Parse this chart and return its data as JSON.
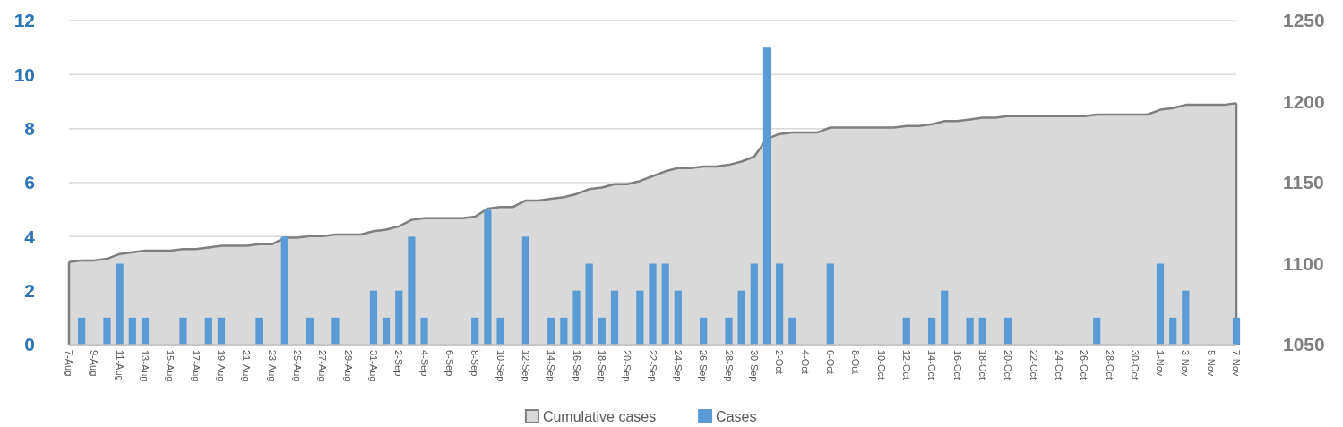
{
  "chart_data": {
    "type": "bar",
    "categories": [
      "7-Aug",
      null,
      "9-Aug",
      null,
      "11-Aug",
      null,
      "13-Aug",
      null,
      "15-Aug",
      null,
      "17-Aug",
      null,
      "19-Aug",
      null,
      "21-Aug",
      null,
      "23-Aug",
      null,
      "25-Aug",
      null,
      "27-Aug",
      null,
      "29-Aug",
      null,
      "31-Aug",
      null,
      "2-Sep",
      null,
      "4-Sep",
      null,
      "6-Sep",
      null,
      "8-Sep",
      null,
      "10-Sep",
      null,
      "12-Sep",
      null,
      "14-Sep",
      null,
      "16-Sep",
      null,
      "18-Sep",
      null,
      "20-Sep",
      null,
      "22-Sep",
      null,
      "24-Sep",
      null,
      "26-Sep",
      null,
      "28-Sep",
      null,
      "30-Sep",
      null,
      "2-Oct",
      null,
      "4-Oct",
      null,
      "6-Oct",
      null,
      "8-Oct",
      null,
      "10-Oct",
      null,
      "12-Oct",
      null,
      "14-Oct",
      null,
      "16-Oct",
      null,
      "18-Oct",
      null,
      "20-Oct",
      null,
      "22-Oct",
      null,
      "24-Oct",
      null,
      "26-Oct",
      null,
      "28-Oct",
      null,
      "30-Oct",
      null,
      "1-Nov",
      null,
      "3-Nov",
      null,
      "5-Nov",
      null,
      "7-Nov"
    ],
    "series": [
      {
        "name": "Cumulative cases",
        "type": "area",
        "axis": "y2",
        "color": "#7f7f7f",
        "values": [
          1101,
          1102,
          1102,
          1103,
          1106,
          1107,
          1108,
          1108,
          1108,
          1109,
          1109,
          1110,
          1111,
          1111,
          1111,
          1112,
          1112,
          1116,
          1116,
          1117,
          1117,
          1118,
          1118,
          1118,
          1120,
          1121,
          1123,
          1127,
          1128,
          1128,
          1128,
          1128,
          1129,
          1134,
          1135,
          1135,
          1139,
          1139,
          1140,
          1141,
          1143,
          1146,
          1147,
          1149,
          1149,
          1151,
          1154,
          1157,
          1159,
          1159,
          1160,
          1160,
          1161,
          1163,
          1166,
          1177,
          1180,
          1181,
          1181,
          1181,
          1184,
          1184,
          1184,
          1184,
          1184,
          1184,
          1185,
          1185,
          1186,
          1188,
          1188,
          1189,
          1190,
          1190,
          1191,
          1191,
          1191,
          1191,
          1191,
          1191,
          1191,
          1192,
          1192,
          1192,
          1192,
          1192,
          1195,
          1196,
          1198,
          1198,
          1198,
          1198,
          1199
        ]
      },
      {
        "name": "Cases",
        "color": "#5b9bd5",
        "values": [
          0,
          1,
          0,
          1,
          3,
          1,
          1,
          0,
          0,
          1,
          0,
          1,
          1,
          0,
          0,
          1,
          0,
          4,
          0,
          1,
          0,
          1,
          0,
          0,
          2,
          1,
          2,
          4,
          1,
          0,
          0,
          0,
          1,
          5,
          1,
          0,
          4,
          0,
          1,
          1,
          2,
          3,
          1,
          2,
          0,
          2,
          3,
          3,
          2,
          0,
          1,
          0,
          1,
          2,
          3,
          11,
          3,
          1,
          0,
          0,
          3,
          0,
          0,
          0,
          0,
          0,
          1,
          0,
          1,
          2,
          0,
          1,
          1,
          0,
          1,
          0,
          0,
          0,
          0,
          0,
          0,
          1,
          0,
          0,
          0,
          0,
          3,
          1,
          2,
          0,
          0,
          0,
          1
        ]
      }
    ],
    "ylim": [
      0,
      12
    ],
    "yticks": [
      0,
      2,
      4,
      6,
      8,
      10,
      12
    ],
    "y2lim": [
      1050,
      1250
    ],
    "y2ticks": [
      1050,
      1100,
      1150,
      1200,
      1250
    ],
    "grid": "y",
    "legend": "bottom"
  }
}
